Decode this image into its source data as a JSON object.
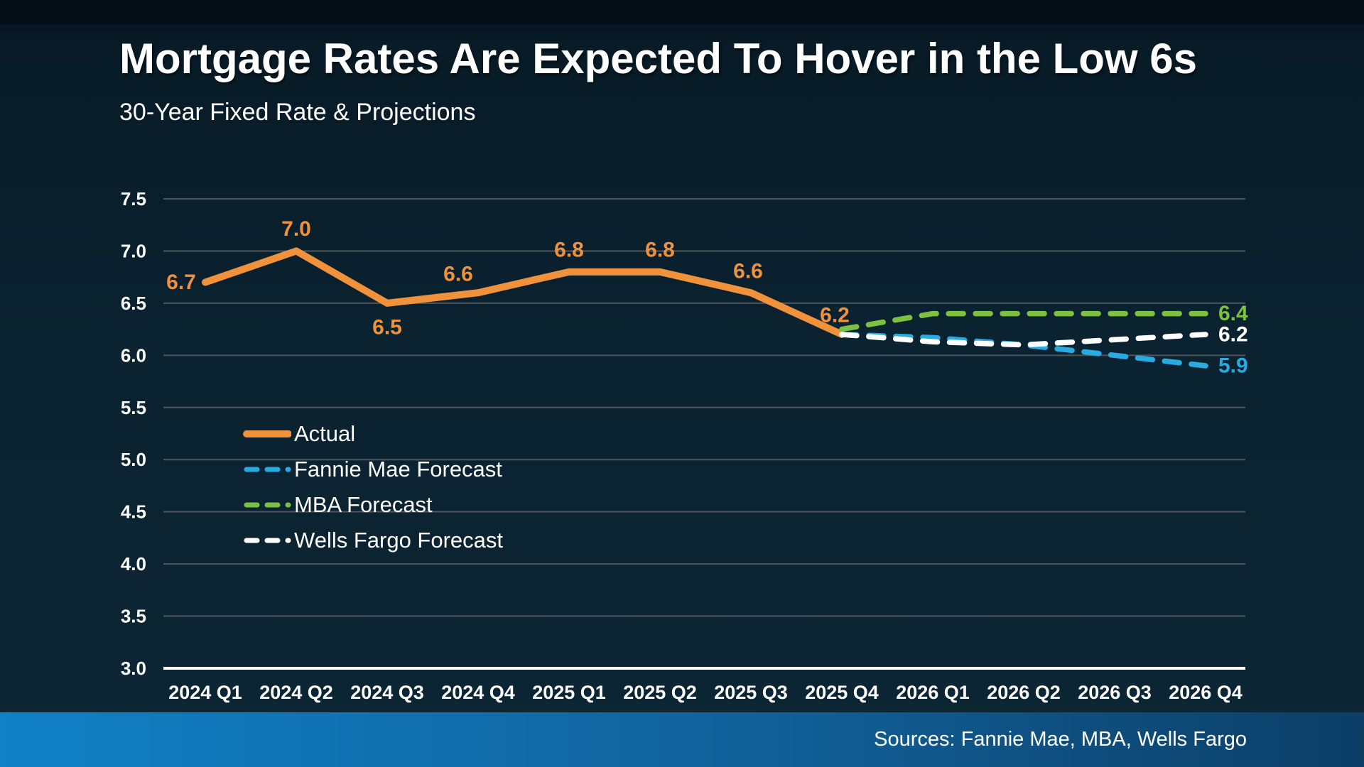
{
  "header": {
    "title": "Mortgage Rates Are Expected To Hover in the Low 6s",
    "subtitle": "30-Year Fixed Rate & Projections"
  },
  "footer": {
    "sources": "Sources: Fannie Mae, MBA, Wells Fargo",
    "bar_gradient": [
      "#1081C6",
      "#0C3E66"
    ]
  },
  "chart_data": {
    "type": "line",
    "title": "30-Year Fixed Rate & Projections",
    "categories": [
      "2024 Q1",
      "2024 Q2",
      "2024 Q3",
      "2024 Q4",
      "2025 Q1",
      "2025 Q2",
      "2025 Q3",
      "2025 Q4",
      "2026 Q1",
      "2026 Q2",
      "2026 Q3",
      "2026 Q4"
    ],
    "ylim": [
      3.0,
      7.5
    ],
    "ytick_step": 0.5,
    "grid": true,
    "legend_position": "inside-left-middle",
    "gridline_color": "#50565C",
    "axis_color": "#FFFFFF",
    "tick_label_color": "#FFFFFF",
    "series": [
      {
        "name": "Actual",
        "color": "#F0913C",
        "style": "solid",
        "values": [
          6.7,
          7.0,
          6.5,
          6.6,
          6.8,
          6.8,
          6.6,
          6.2,
          null,
          null,
          null,
          null
        ],
        "point_labels": [
          {
            "i": 0,
            "text": "6.7",
            "dx": -34,
            "dy": 0
          },
          {
            "i": 1,
            "text": "7.0",
            "dx": 0,
            "dy": -31
          },
          {
            "i": 2,
            "text": "6.5",
            "dx": 0,
            "dy": 34
          },
          {
            "i": 3,
            "text": "6.6",
            "dx": -28,
            "dy": -26
          },
          {
            "i": 4,
            "text": "6.8",
            "dx": 0,
            "dy": -31
          },
          {
            "i": 5,
            "text": "6.8",
            "dx": 0,
            "dy": -31
          },
          {
            "i": 6,
            "text": "6.6",
            "dx": -4,
            "dy": -30
          },
          {
            "i": 7,
            "text": "6.2",
            "dx": -10,
            "dy": -27
          }
        ]
      },
      {
        "name": "Fannie Mae Forecast",
        "color": "#29ABE2",
        "style": "dashed",
        "values": [
          null,
          null,
          null,
          null,
          null,
          null,
          null,
          6.2,
          6.17,
          6.1,
          6.0,
          5.9
        ],
        "end_label": "5.9"
      },
      {
        "name": "MBA Forecast",
        "color": "#7DC142",
        "style": "dashed",
        "values": [
          null,
          null,
          null,
          null,
          null,
          null,
          null,
          6.25,
          6.4,
          6.4,
          6.4,
          6.4
        ],
        "end_label": "6.4"
      },
      {
        "name": "Wells Fargo Forecast",
        "color": "#FFFFFF",
        "style": "dashed",
        "values": [
          null,
          null,
          null,
          null,
          null,
          null,
          null,
          6.2,
          6.13,
          6.1,
          6.15,
          6.2
        ],
        "end_label": "6.2"
      }
    ]
  }
}
